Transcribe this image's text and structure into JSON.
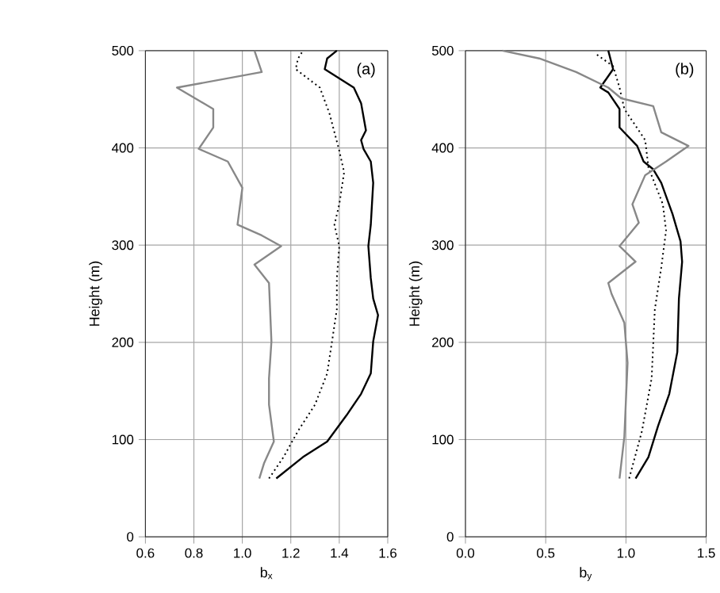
{
  "chart_data": [
    {
      "type": "line",
      "xlabel": "b$_{x}$",
      "ylabel": "Height (m)",
      "annotations": [
        "(a)"
      ],
      "grid": true,
      "marker": "none",
      "xlim": [
        0.6,
        1.6
      ],
      "xticks": [
        {
          "value": 0.6,
          "label": "0.6"
        },
        {
          "value": 0.8,
          "label": "0.8"
        },
        {
          "value": 1.0,
          "label": "1.0"
        },
        {
          "value": 1.2,
          "label": "1.2"
        },
        {
          "value": 1.4,
          "label": "1.4"
        },
        {
          "value": 1.6,
          "label": "1.6"
        }
      ],
      "ylim": [
        0,
        500
      ],
      "yticks": [
        0,
        100,
        200,
        300,
        400,
        500
      ],
      "series": [
        {
          "color": "#000000",
          "line_style": "solid",
          "x": [
            1.14,
            1.25,
            1.35,
            1.43,
            1.49,
            1.53,
            1.54,
            1.56,
            1.54,
            1.53,
            1.52,
            1.53,
            1.54,
            1.53,
            1.5,
            1.49,
            1.51,
            1.49,
            1.46,
            1.34,
            1.35,
            1.39
          ],
          "values": [
            60,
            82,
            98,
            125,
            147,
            168,
            201,
            228,
            245,
            266,
            299,
            321,
            364,
            386,
            399,
            408,
            418,
            446,
            462,
            481,
            492,
            500
          ]
        },
        {
          "color": "#000000",
          "line_style": "dotted",
          "x": [
            1.11,
            1.17,
            1.23,
            1.3,
            1.35,
            1.37,
            1.39,
            1.39,
            1.4,
            1.38,
            1.4,
            1.42,
            1.4,
            1.36,
            1.32,
            1.22,
            1.23,
            1.25
          ],
          "values": [
            60,
            82,
            109,
            136,
            168,
            201,
            234,
            266,
            299,
            321,
            342,
            375,
            397,
            435,
            462,
            481,
            492,
            500
          ]
        },
        {
          "color": "#888888",
          "line_style": "solid",
          "x": [
            1.07,
            1.09,
            1.13,
            1.11,
            1.11,
            1.12,
            1.11,
            1.05,
            1.16,
            1.08,
            0.98,
            1.0,
            0.94,
            0.82,
            0.88,
            0.88,
            0.73,
            1.08,
            1.05
          ],
          "values": [
            60,
            76,
            98,
            136,
            163,
            201,
            261,
            280,
            299,
            310,
            321,
            359,
            386,
            399,
            421,
            440,
            462,
            478,
            500
          ]
        }
      ]
    },
    {
      "type": "line",
      "xlabel": "b$_{y}$",
      "ylabel": "Height (m)",
      "annotations": [
        "(b)"
      ],
      "grid": true,
      "marker": "none",
      "xlim": [
        0.0,
        1.5
      ],
      "xticks": [
        {
          "value": 0.0,
          "label": "0.0"
        },
        {
          "value": 0.5,
          "label": "0.5"
        },
        {
          "value": 1.0,
          "label": "1.0"
        },
        {
          "value": 1.5,
          "label": "1.5"
        }
      ],
      "ylim": [
        0,
        500
      ],
      "yticks": [
        0,
        100,
        200,
        300,
        400,
        500
      ],
      "series": [
        {
          "color": "#000000",
          "line_style": "solid",
          "x": [
            1.06,
            1.14,
            1.2,
            1.27,
            1.32,
            1.33,
            1.35,
            1.34,
            1.29,
            1.22,
            1.17,
            1.11,
            1.07,
            0.96,
            0.96,
            0.89,
            0.84,
            0.92,
            0.89
          ],
          "values": [
            60,
            82,
            114,
            147,
            190,
            245,
            283,
            304,
            332,
            364,
            378,
            386,
            402,
            421,
            440,
            457,
            462,
            481,
            500
          ]
        },
        {
          "color": "#000000",
          "line_style": "dotted",
          "x": [
            1.02,
            1.1,
            1.16,
            1.18,
            1.22,
            1.25,
            1.23,
            1.14,
            1.12,
            0.99,
            0.96,
            0.92,
            0.81
          ],
          "values": [
            60,
            109,
            163,
            234,
            277,
            315,
            342,
            380,
            408,
            440,
            462,
            484,
            497
          ]
        },
        {
          "color": "#888888",
          "line_style": "solid",
          "x": [
            0.96,
            0.99,
            1.01,
            0.99,
            0.91,
            0.89,
            1.06,
            0.96,
            1.08,
            1.04,
            1.12,
            1.25,
            1.39,
            1.22,
            1.17,
            0.97,
            0.89,
            0.69,
            0.46,
            0.23
          ],
          "values": [
            60,
            103,
            179,
            220,
            250,
            261,
            283,
            299,
            323,
            342,
            372,
            386,
            402,
            416,
            443,
            451,
            462,
            478,
            492,
            500
          ]
        }
      ]
    }
  ]
}
